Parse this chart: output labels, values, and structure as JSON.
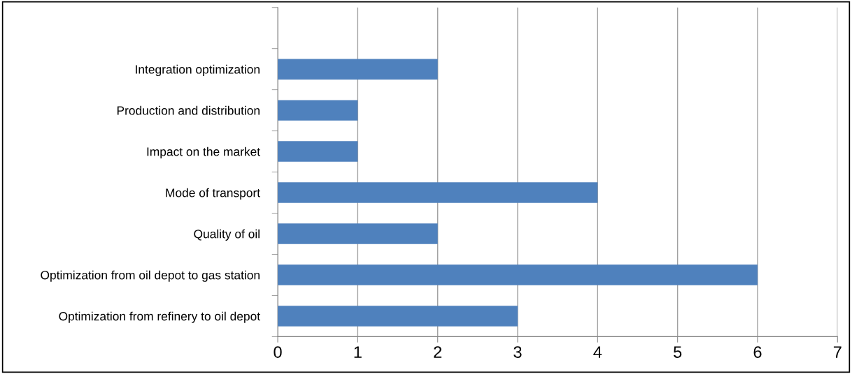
{
  "chart_data": {
    "type": "bar",
    "orientation": "horizontal",
    "categories": [
      null,
      "Integration optimization",
      "Production and distribution",
      "Impact on the market",
      "Mode of transport",
      "Quality of oil",
      "Optimization from oil depot to gas station",
      "Optimization from refinery to oil depot"
    ],
    "values": [
      null,
      2,
      1,
      1,
      4,
      2,
      6,
      3
    ],
    "color": "#4f81bd",
    "xlim": [
      0,
      7
    ],
    "xticks": [
      0,
      1,
      2,
      3,
      4,
      5,
      6,
      7
    ],
    "grid": "x",
    "legend": false
  }
}
